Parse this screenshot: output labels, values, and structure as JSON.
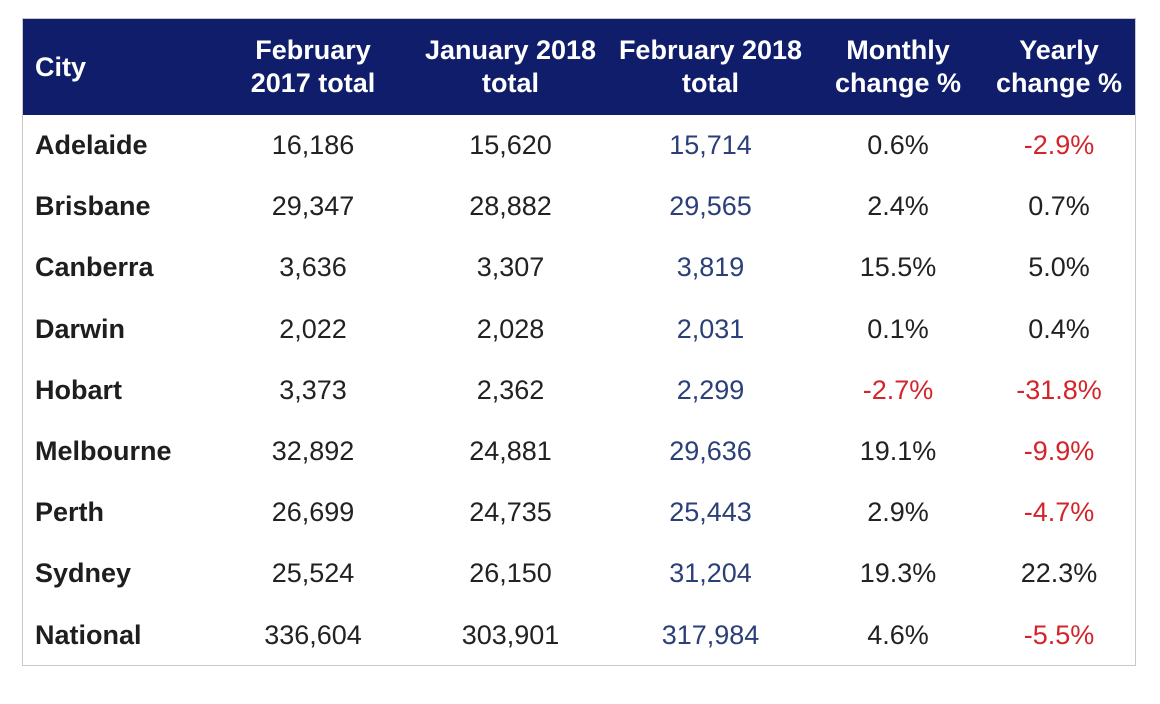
{
  "headers": {
    "city": "City",
    "feb2017": [
      "February",
      "2017 total"
    ],
    "jan2018": [
      "January 2018",
      "total"
    ],
    "feb2018": [
      "February 2018",
      "total"
    ],
    "monthly": [
      "Monthly",
      "change %"
    ],
    "yearly": [
      "Yearly",
      "change %"
    ]
  },
  "rows": [
    {
      "city": "Adelaide",
      "feb2017": "16,186",
      "jan2018": "15,620",
      "feb2018": "15,714",
      "monthly": "0.6%",
      "yearly": "-2.9%"
    },
    {
      "city": "Brisbane",
      "feb2017": "29,347",
      "jan2018": "28,882",
      "feb2018": "29,565",
      "monthly": "2.4%",
      "yearly": "0.7%"
    },
    {
      "city": "Canberra",
      "feb2017": "3,636",
      "jan2018": "3,307",
      "feb2018": "3,819",
      "monthly": "15.5%",
      "yearly": "5.0%"
    },
    {
      "city": "Darwin",
      "feb2017": "2,022",
      "jan2018": "2,028",
      "feb2018": "2,031",
      "monthly": "0.1%",
      "yearly": "0.4%"
    },
    {
      "city": "Hobart",
      "feb2017": "3,373",
      "jan2018": "2,362",
      "feb2018": "2,299",
      "monthly": "-2.7%",
      "yearly": "-31.8%"
    },
    {
      "city": "Melbourne",
      "feb2017": "32,892",
      "jan2018": "24,881",
      "feb2018": "29,636",
      "monthly": "19.1%",
      "yearly": "-9.9%"
    },
    {
      "city": "Perth",
      "feb2017": "26,699",
      "jan2018": "24,735",
      "feb2018": "25,443",
      "monthly": "2.9%",
      "yearly": "-4.7%"
    },
    {
      "city": "Sydney",
      "feb2017": "25,524",
      "jan2018": "26,150",
      "feb2018": "31,204",
      "monthly": "19.3%",
      "yearly": "22.3%"
    },
    {
      "city": "National",
      "feb2017": "336,604",
      "jan2018": "303,901",
      "feb2018": "317,984",
      "monthly": "4.6%",
      "yearly": "-5.5%"
    }
  ],
  "colors": {
    "header_bg": "#0f1d6b",
    "header_text": "#ffffff",
    "negative": "#d4242b",
    "feb2018_value": "#2b3f78"
  }
}
